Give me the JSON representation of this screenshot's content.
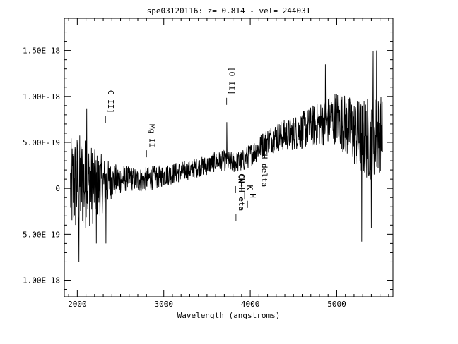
{
  "chart_data": {
    "type": "line",
    "title": "spe03120116: z= 0.814  -  vel= 244031",
    "xlabel": "Wavelength (angstroms)",
    "ylabel": "",
    "xlim": [
      1850,
      5650
    ],
    "ylim": [
      -1.18e-18,
      1.85e-18
    ],
    "x_ticks": [
      {
        "value": 2000,
        "label": "2000"
      },
      {
        "value": 3000,
        "label": "3000"
      },
      {
        "value": 4000,
        "label": "4000"
      },
      {
        "value": 5000,
        "label": "5000"
      }
    ],
    "y_ticks": [
      {
        "value": 1.5e-18,
        "label": "1.50E-18"
      },
      {
        "value": 1e-18,
        "label": "1.00E-18"
      },
      {
        "value": 5e-19,
        "label": "5.00E-19"
      },
      {
        "value": 0,
        "label": "0"
      },
      {
        "value": -5e-19,
        "label": "-5.00E-19"
      },
      {
        "value": -1e-18,
        "label": "-1.00E-18"
      }
    ],
    "annotations": [
      {
        "text": "C II]",
        "x": 2326,
        "y": 8e-19
      },
      {
        "text": "Mg II",
        "x": 2800,
        "y": 4.3e-19
      },
      {
        "text": "[O II]",
        "x": 3727,
        "y": 1e-18
      },
      {
        "text": "CN",
        "x": 3830,
        "y": 4e-20
      },
      {
        "text": "K",
        "x": 3934,
        "y": -3e-20
      },
      {
        "text": "H",
        "x": 3968,
        "y": -1.2e-19
      },
      {
        "text": "H delta",
        "x": 4102,
        "y": 0.0
      },
      {
        "text": "CN+H eta",
        "x": 3835,
        "y": -2.6e-19
      }
    ],
    "series": [
      {
        "anchors": [
          [
            1920,
            0.0
          ],
          [
            2000,
            5e-20
          ],
          [
            2100,
            6e-20
          ],
          [
            2200,
            2e-20
          ],
          [
            2300,
            5e-20
          ],
          [
            2400,
            8e-20
          ],
          [
            2500,
            1e-19
          ],
          [
            2600,
            1.1e-19
          ],
          [
            2700,
            9e-20
          ],
          [
            2800,
            1e-19
          ],
          [
            2900,
            1.2e-19
          ],
          [
            3000,
            1.4e-19
          ],
          [
            3100,
            1.6e-19
          ],
          [
            3200,
            1.8e-19
          ],
          [
            3300,
            2e-19
          ],
          [
            3400,
            2.3e-19
          ],
          [
            3500,
            2.5e-19
          ],
          [
            3600,
            2.9e-19
          ],
          [
            3700,
            3e-19
          ],
          [
            3800,
            2.8e-19
          ],
          [
            3900,
            2.9e-19
          ],
          [
            4000,
            3.6e-19
          ],
          [
            4100,
            4.4e-19
          ],
          [
            4200,
            5.2e-19
          ],
          [
            4300,
            5.6e-19
          ],
          [
            4400,
            5.8e-19
          ],
          [
            4500,
            6e-19
          ],
          [
            4600,
            6.3e-19
          ],
          [
            4700,
            6.7e-19
          ],
          [
            4800,
            7e-19
          ],
          [
            4900,
            7.4e-19
          ],
          [
            5000,
            7.8e-19
          ],
          [
            5100,
            6.9e-19
          ],
          [
            5200,
            6.1e-19
          ],
          [
            5300,
            5.4e-19
          ],
          [
            5400,
            5.6e-19
          ],
          [
            5500,
            6e-19
          ],
          [
            5530,
            6e-19
          ]
        ],
        "noise": [
          [
            1920,
            4e-19
          ],
          [
            2000,
            4.2e-19
          ],
          [
            2100,
            3.8e-19
          ],
          [
            2200,
            3e-19
          ],
          [
            2300,
            2.3e-19
          ],
          [
            2400,
            1.4e-19
          ],
          [
            2600,
            1e-19
          ],
          [
            2800,
            1e-19
          ],
          [
            3000,
            9e-20
          ],
          [
            3300,
            8e-20
          ],
          [
            3600,
            8e-20
          ],
          [
            3900,
            9e-20
          ],
          [
            4200,
            1.1e-19
          ],
          [
            4500,
            1.4e-19
          ],
          [
            4800,
            1.8e-19
          ],
          [
            5000,
            2.2e-19
          ],
          [
            5200,
            2.8e-19
          ],
          [
            5400,
            3.6e-19
          ],
          [
            5530,
            3e-19
          ]
        ],
        "spikes": [
          [
            2020,
            -8e-19
          ],
          [
            2110,
            8.7e-19
          ],
          [
            2220,
            -6e-19
          ],
          [
            2330,
            -6e-19
          ],
          [
            3730,
            7.2e-19
          ],
          [
            4870,
            1.35e-18
          ],
          [
            5290,
            -5.8e-19
          ],
          [
            5420,
            1.49e-18
          ],
          [
            5460,
            1.5e-18
          ],
          [
            5400,
            -4.3e-19
          ],
          [
            5050,
            1.1e-18
          ]
        ]
      }
    ]
  }
}
